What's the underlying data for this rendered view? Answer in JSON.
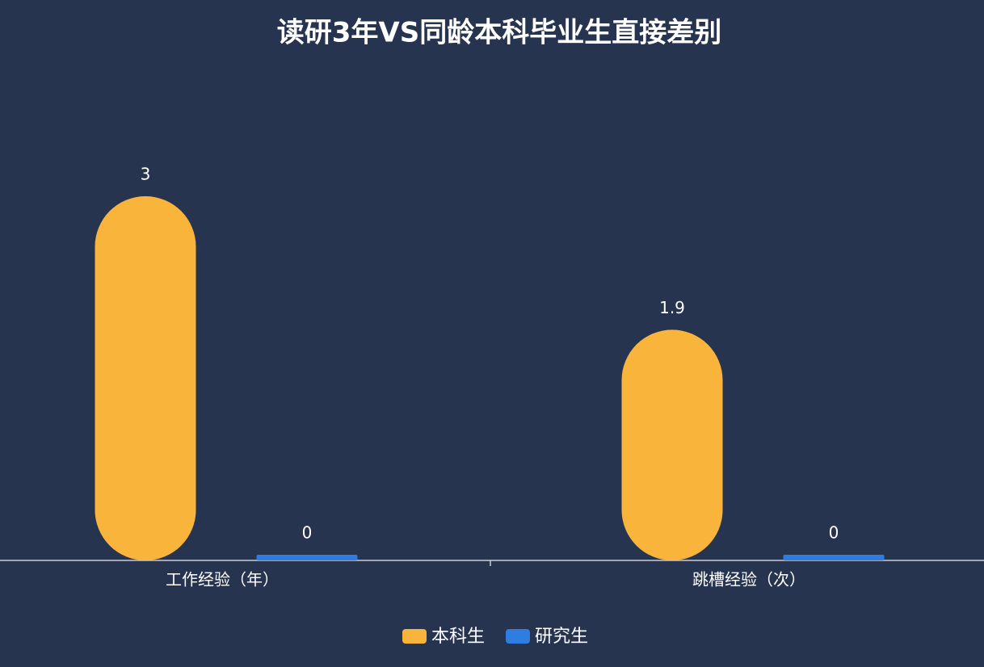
{
  "chart_data": {
    "type": "bar",
    "title": "读研3年VS同龄本科毕业生直接差别",
    "categories": [
      "工作经验（年）",
      "跳槽经验（次）"
    ],
    "series": [
      {
        "name": "本科生",
        "color": "#f9b43b",
        "values": [
          3,
          1.9
        ]
      },
      {
        "name": "研究生",
        "color": "#2f7de1",
        "values": [
          0,
          0
        ]
      }
    ],
    "ylim": [
      0,
      3
    ]
  }
}
